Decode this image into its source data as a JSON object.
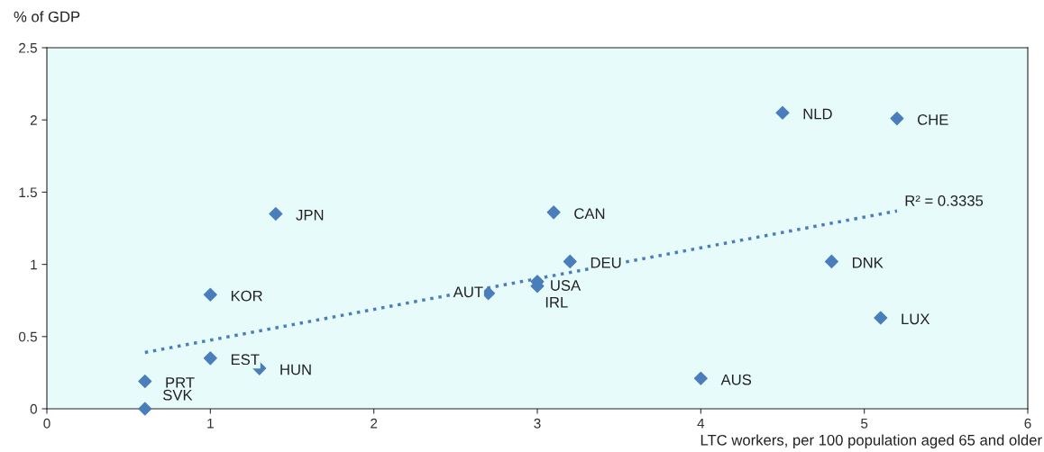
{
  "chart_data": {
    "type": "scatter",
    "xlabel": "LTC workers, per 100 population aged 65 and older",
    "ylabel": "% of GDP",
    "xlim": [
      0,
      6
    ],
    "xticks": [
      0,
      1,
      2,
      3,
      4,
      5,
      6
    ],
    "ylim": [
      0,
      2.5
    ],
    "yticks": [
      0,
      0.5,
      1,
      1.5,
      2,
      2.5
    ],
    "grid": false,
    "series": [
      {
        "marker": "diamond",
        "color": "#4a7ebb",
        "x": [
          4.5,
          5.2,
          1.4,
          3.1,
          3.2,
          4.8,
          3.0,
          3.0,
          2.7,
          1.0,
          5.1,
          1.0,
          1.3,
          0.6,
          0.6,
          4.0
        ],
        "values": [
          2.05,
          2.01,
          1.35,
          1.36,
          1.02,
          1.02,
          0.88,
          0.85,
          0.8,
          0.79,
          0.63,
          0.35,
          0.28,
          0.19,
          0.0,
          0.21
        ],
        "value_labels": [
          "NLD",
          "CHE",
          "JPN",
          "CAN",
          "DEU",
          "DNK",
          "USA",
          "IRL",
          "AUT",
          "KOR",
          "LUX",
          "EST",
          "HUN",
          "PRT",
          "SVK",
          "AUS"
        ]
      },
      {
        "type": "line",
        "marker": "none",
        "color": "#4a7ebb",
        "line_style": "dotted",
        "x": [
          0.6,
          5.2
        ],
        "values": [
          0.39,
          1.37
        ]
      }
    ],
    "annotations": [
      {
        "text": "R² = 0.3335",
        "x": 5.2,
        "y": 1.37
      }
    ]
  }
}
